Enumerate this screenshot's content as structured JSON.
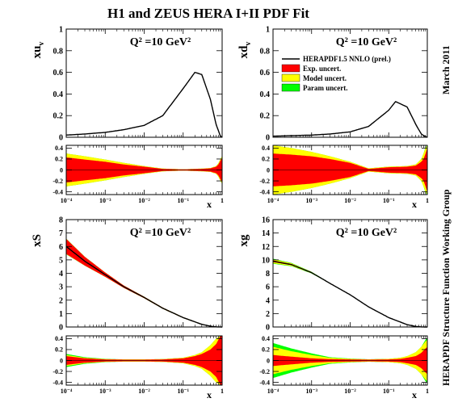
{
  "figure": {
    "title": "H1 and ZEUS HERA I+II PDF Fit",
    "side_label_top": "March 2011",
    "side_label_bottom": "HERAPDF Structure Function Working Group"
  },
  "legend": {
    "entries": [
      {
        "label": "HERAPDF1.5 NNLO (prel.)",
        "kind": "line",
        "color": "#000000"
      },
      {
        "label": "Exp. uncert.",
        "kind": "box",
        "color": "#ff0000"
      },
      {
        "label": "Model uncert.",
        "kind": "box",
        "color": "#ffff00"
      },
      {
        "label": "Param uncert.",
        "kind": "box",
        "color": "#00ff00"
      }
    ]
  },
  "colors": {
    "exp": "#ff0000",
    "model": "#ffff00",
    "param": "#00ff00",
    "central": "#000000",
    "ref": "#00aa00"
  },
  "chart_data": [
    {
      "type": "area",
      "panel": "xu_v",
      "ylabel": "xu_v",
      "annotation": "Q² =10 GeV²",
      "xscale": "log",
      "xlim": [
        0.0001,
        1
      ],
      "ylim": [
        0,
        1
      ],
      "yticks": [
        0,
        0.2,
        0.4,
        0.6,
        0.8,
        1
      ],
      "ytick_labels": [
        "0",
        "0.2",
        "0.4",
        "0.6",
        "0.8",
        "1"
      ],
      "x": [
        0.0001,
        0.0003,
        0.001,
        0.003,
        0.01,
        0.03,
        0.1,
        0.2,
        0.3,
        0.5,
        0.7,
        0.9,
        1.0
      ],
      "central": [
        0.02,
        0.03,
        0.045,
        0.07,
        0.11,
        0.2,
        0.45,
        0.6,
        0.58,
        0.35,
        0.12,
        0.01,
        0.0
      ],
      "ratio": {
        "xlabel": "x",
        "ylim": [
          -0.45,
          0.45
        ],
        "yticks": [
          -0.4,
          -0.2,
          0,
          0.2,
          0.4
        ],
        "ytick_labels": [
          "-0.4",
          "-0.2",
          "0",
          "0.2",
          "0.4"
        ],
        "xtick_labels": [
          "10⁻⁴",
          "10⁻³",
          "10⁻²",
          "10⁻¹",
          "1"
        ],
        "x": [
          0.0001,
          0.0003,
          0.001,
          0.003,
          0.01,
          0.03,
          0.1,
          0.3,
          0.5,
          0.7,
          0.8,
          0.9,
          1.0
        ],
        "exp": [
          0.23,
          0.19,
          0.15,
          0.1,
          0.06,
          0.02,
          0.01,
          0.02,
          0.03,
          0.06,
          0.1,
          0.17,
          0.22
        ],
        "model": [
          0.3,
          0.25,
          0.19,
          0.13,
          0.07,
          0.025,
          0.012,
          0.025,
          0.035,
          0.07,
          0.12,
          0.2,
          0.25
        ],
        "param": [
          0.3,
          0.25,
          0.19,
          0.13,
          0.07,
          0.025,
          0.012,
          0.025,
          0.035,
          0.07,
          0.12,
          0.2,
          0.25
        ]
      }
    },
    {
      "type": "area",
      "panel": "xd_v",
      "ylabel": "xd_v",
      "annotation": "Q² =10 GeV²",
      "xscale": "log",
      "xlim": [
        0.0001,
        1
      ],
      "ylim": [
        0,
        1
      ],
      "yticks": [
        0,
        0.2,
        0.4,
        0.6,
        0.8,
        1
      ],
      "ytick_labels": [
        "0",
        "0.2",
        "0.4",
        "0.6",
        "0.8",
        "1"
      ],
      "x": [
        0.0001,
        0.0003,
        0.001,
        0.003,
        0.01,
        0.03,
        0.1,
        0.15,
        0.3,
        0.5,
        0.7,
        0.9,
        1.0
      ],
      "central": [
        0.01,
        0.015,
        0.02,
        0.03,
        0.05,
        0.1,
        0.25,
        0.33,
        0.28,
        0.12,
        0.03,
        0.005,
        0.0
      ],
      "ratio": {
        "xlabel": "x",
        "ylim": [
          -0.45,
          0.45
        ],
        "yticks": [
          -0.4,
          -0.2,
          0,
          0.2,
          0.4
        ],
        "ytick_labels": [
          "-0.4",
          "-0.2",
          "0",
          "0.2",
          "0.4"
        ],
        "xtick_labels": [
          "10⁻⁴",
          "10⁻³",
          "10⁻²",
          "10⁻¹",
          "1"
        ],
        "x": [
          0.0001,
          0.0003,
          0.001,
          0.003,
          0.01,
          0.03,
          0.1,
          0.3,
          0.5,
          0.7,
          0.8,
          0.9,
          1.0
        ],
        "exp": [
          0.3,
          0.28,
          0.25,
          0.2,
          0.13,
          0.02,
          0.05,
          0.06,
          0.08,
          0.15,
          0.2,
          0.3,
          0.4
        ],
        "model": [
          0.45,
          0.4,
          0.33,
          0.25,
          0.15,
          0.03,
          0.06,
          0.07,
          0.1,
          0.2,
          0.3,
          0.4,
          0.45
        ],
        "param": [
          0.45,
          0.4,
          0.33,
          0.25,
          0.15,
          0.03,
          0.06,
          0.07,
          0.1,
          0.2,
          0.3,
          0.42,
          0.45
        ]
      }
    },
    {
      "type": "area",
      "panel": "xS",
      "ylabel": "xS",
      "annotation": "Q² =10 GeV²",
      "xscale": "log",
      "xlim": [
        0.0001,
        1
      ],
      "ylim": [
        0,
        8
      ],
      "yticks": [
        0,
        1,
        2,
        3,
        4,
        5,
        6,
        7,
        8
      ],
      "ytick_labels": [
        "0",
        "1",
        "2",
        "3",
        "4",
        "5",
        "6",
        "7",
        "8"
      ],
      "x": [
        0.0001,
        0.0003,
        0.001,
        0.003,
        0.01,
        0.03,
        0.1,
        0.3,
        0.5,
        0.7,
        1.0
      ],
      "central": [
        6.0,
        4.9,
        3.9,
        3.0,
        2.2,
        1.4,
        0.7,
        0.2,
        0.06,
        0.01,
        0.0
      ],
      "central_spread": [
        0.5,
        0.3,
        0.15,
        0.08,
        0.05,
        0.04,
        0.03,
        0.02,
        0.01,
        0.005,
        0.0
      ],
      "ratio": {
        "xlabel": "x",
        "ylim": [
          -0.45,
          0.45
        ],
        "yticks": [
          -0.4,
          -0.2,
          0,
          0.2,
          0.4
        ],
        "ytick_labels": [
          "-0.4",
          "-0.2",
          "0",
          "0.2",
          "0.4"
        ],
        "xtick_labels": [
          "10⁻⁴",
          "10⁻³",
          "10⁻²",
          "10⁻¹",
          "1"
        ],
        "x": [
          0.0001,
          0.0003,
          0.001,
          0.003,
          0.01,
          0.03,
          0.1,
          0.2,
          0.3,
          0.5,
          0.7,
          0.9,
          1.0
        ],
        "exp": [
          0.08,
          0.04,
          0.02,
          0.015,
          0.015,
          0.02,
          0.04,
          0.08,
          0.12,
          0.2,
          0.3,
          0.45,
          0.45
        ],
        "model": [
          0.1,
          0.05,
          0.025,
          0.02,
          0.02,
          0.025,
          0.05,
          0.1,
          0.15,
          0.28,
          0.4,
          0.45,
          0.45
        ],
        "param": [
          0.12,
          0.06,
          0.03,
          0.02,
          0.02,
          0.025,
          0.05,
          0.1,
          0.15,
          0.28,
          0.4,
          0.45,
          0.45
        ]
      }
    },
    {
      "type": "area",
      "panel": "xg",
      "ylabel": "xg",
      "annotation": "Q² =10 GeV²",
      "xscale": "log",
      "xlim": [
        0.0001,
        1
      ],
      "ylim": [
        0,
        16
      ],
      "yticks": [
        0,
        2,
        4,
        6,
        8,
        10,
        12,
        14,
        16
      ],
      "ytick_labels": [
        "0",
        "2",
        "4",
        "6",
        "8",
        "10",
        "12",
        "14",
        "16"
      ],
      "x": [
        0.0001,
        0.0003,
        0.001,
        0.003,
        0.01,
        0.03,
        0.1,
        0.3,
        0.5,
        0.7,
        1.0
      ],
      "central": [
        9.8,
        9.3,
        8.1,
        6.5,
        4.8,
        3.0,
        1.4,
        0.35,
        0.08,
        0.01,
        0.0
      ],
      "ratio": {
        "xlabel": "x",
        "ylim": [
          -0.45,
          0.45
        ],
        "yticks": [
          -0.4,
          -0.2,
          0,
          0.2,
          0.4
        ],
        "ytick_labels": [
          "-0.4",
          "-0.2",
          "0",
          "0.2",
          "0.4"
        ],
        "xtick_labels": [
          "10⁻⁴",
          "10⁻³",
          "10⁻²",
          "10⁻¹",
          "1"
        ],
        "x": [
          0.0001,
          0.0003,
          0.001,
          0.003,
          0.01,
          0.03,
          0.1,
          0.2,
          0.3,
          0.5,
          0.7,
          0.9,
          1.0
        ],
        "exp": [
          0.1,
          0.07,
          0.04,
          0.025,
          0.02,
          0.015,
          0.02,
          0.03,
          0.05,
          0.08,
          0.14,
          0.22,
          0.25
        ],
        "model": [
          0.25,
          0.17,
          0.1,
          0.05,
          0.03,
          0.02,
          0.03,
          0.05,
          0.08,
          0.15,
          0.25,
          0.35,
          0.38
        ],
        "param": [
          0.32,
          0.22,
          0.13,
          0.06,
          0.035,
          0.022,
          0.03,
          0.05,
          0.08,
          0.15,
          0.25,
          0.38,
          0.42
        ]
      }
    }
  ]
}
